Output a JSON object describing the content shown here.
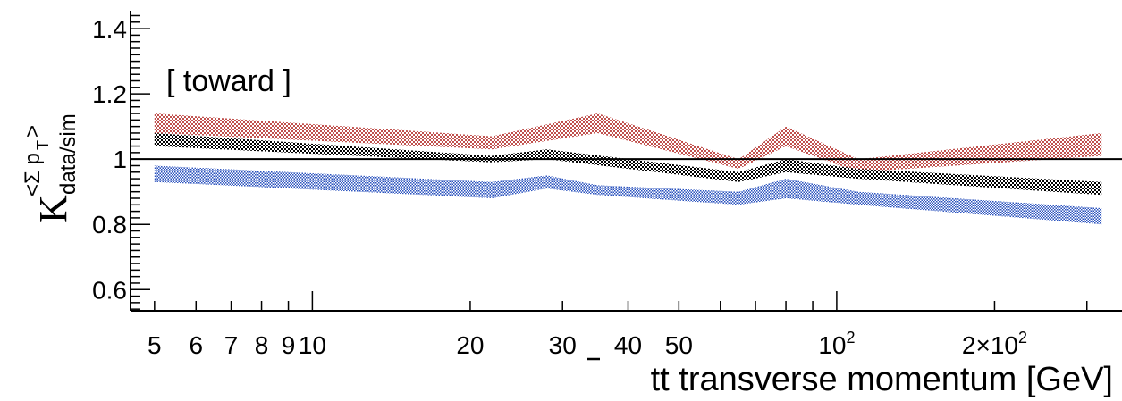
{
  "chart_data": {
    "type": "area",
    "title": "",
    "annotation": "[ toward ]",
    "annotation_color": "#1a1aff",
    "xlabel": "tt transverse momentum [GeV]",
    "ylabel_main": "K",
    "ylabel_sub": "data/sim",
    "ylabel_sup": "<Σ p",
    "ylabel_sup_sub": "T",
    "ylabel_sup_close": ">",
    "x_scale": "log",
    "xlim": [
      4.5,
      350
    ],
    "ylim": [
      0.535,
      1.455
    ],
    "y_ticks": [
      0.6,
      0.8,
      1,
      1.2,
      1.4
    ],
    "y_tick_labels": [
      "0.6",
      "0.8",
      "1",
      "1.2",
      "1.4"
    ],
    "x_ticks": [
      5,
      6,
      7,
      8,
      9,
      10,
      20,
      30,
      40,
      50,
      100,
      200
    ],
    "x_tick_labels": [
      {
        "text": "5",
        "sup": ""
      },
      {
        "text": "6",
        "sup": ""
      },
      {
        "text": "7",
        "sup": ""
      },
      {
        "text": "8",
        "sup": ""
      },
      {
        "text": "9",
        "sup": ""
      },
      {
        "text": "10",
        "sup": ""
      },
      {
        "text": "20",
        "sup": ""
      },
      {
        "text": "30",
        "sup": ""
      },
      {
        "text": "40",
        "sup": ""
      },
      {
        "text": "50",
        "sup": ""
      },
      {
        "text": "10",
        "sup": "2"
      },
      {
        "text": "2×10",
        "sup": "2"
      }
    ],
    "reference_line": 1.0,
    "grid": false,
    "series": [
      {
        "color": "#c0504d",
        "x": [
          5,
          22,
          35,
          65,
          80,
          110,
          320
        ],
        "lower": [
          1.08,
          1.03,
          1.08,
          0.97,
          1.04,
          0.96,
          1.01
        ],
        "upper": [
          1.14,
          1.07,
          1.14,
          1.0,
          1.1,
          1.0,
          1.08
        ]
      },
      {
        "color": "#000000",
        "x": [
          5,
          22,
          28,
          65,
          80,
          110,
          320
        ],
        "lower": [
          1.04,
          0.99,
          1.0,
          0.93,
          0.96,
          0.94,
          0.89
        ],
        "upper": [
          1.08,
          1.01,
          1.03,
          0.96,
          1.0,
          0.97,
          0.93
        ]
      },
      {
        "color": "#2a52be",
        "x": [
          5,
          22,
          28,
          35,
          65,
          80,
          110,
          320
        ],
        "lower": [
          0.93,
          0.88,
          0.91,
          0.89,
          0.86,
          0.88,
          0.86,
          0.8
        ],
        "upper": [
          0.98,
          0.93,
          0.95,
          0.92,
          0.9,
          0.94,
          0.9,
          0.85
        ]
      }
    ]
  }
}
